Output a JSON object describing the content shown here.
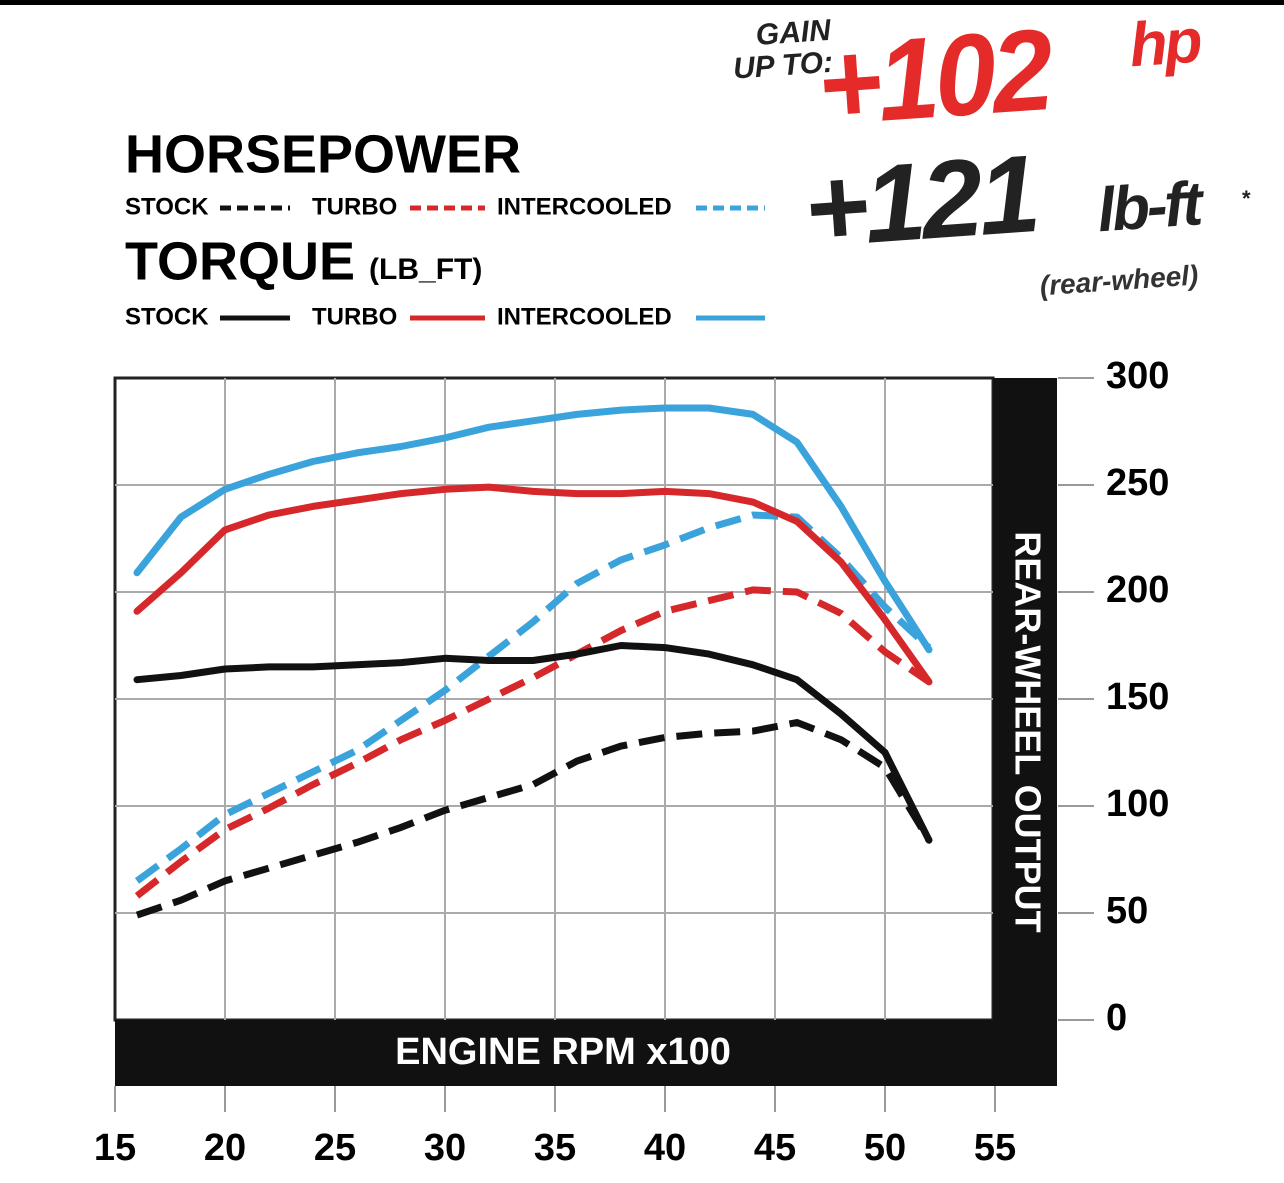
{
  "chart_data": {
    "type": "line",
    "headline": {
      "intro": "GAIN\nUP TO:",
      "hp_value": "+102",
      "hp_unit": "hp",
      "tq_value": "+121",
      "tq_unit": "lb-ft",
      "tq_mark": "*",
      "note": "(rear-wheel)"
    },
    "legend_groups": [
      {
        "title": "HORSEPOWER"
      },
      {
        "title": "TORQUE",
        "unit": "(LB_FT)"
      }
    ],
    "xlabel": "ENGINE RPM x100",
    "ylabel": "REAR-WHEEL OUTPUT",
    "x": [
      16,
      18,
      20,
      22,
      24,
      26,
      28,
      30,
      32,
      34,
      36,
      38,
      40,
      42,
      44,
      46,
      48,
      50,
      52
    ],
    "series": [
      {
        "name": "STOCK",
        "group": 0,
        "dashed": true,
        "color": "#111111",
        "values": [
          49,
          56,
          65,
          71,
          77,
          83,
          90,
          98,
          104,
          110,
          121,
          128,
          132,
          134,
          135,
          139,
          131,
          118,
          84
        ]
      },
      {
        "name": "TURBO",
        "group": 0,
        "dashed": true,
        "color": "#d6282b",
        "values": [
          58,
          74,
          89,
          99,
          110,
          120,
          131,
          140,
          150,
          160,
          171,
          182,
          191,
          196,
          201,
          200,
          190,
          172,
          158
        ]
      },
      {
        "name": "INTERCOOLED",
        "group": 0,
        "dashed": true,
        "color": "#3aa3dc",
        "values": [
          65,
          80,
          96,
          106,
          116,
          126,
          140,
          154,
          170,
          186,
          204,
          215,
          222,
          230,
          236,
          235,
          216,
          193,
          174
        ]
      },
      {
        "name": "STOCK",
        "group": 1,
        "dashed": false,
        "color": "#111111",
        "values": [
          159,
          161,
          164,
          165,
          165,
          166,
          167,
          169,
          168,
          168,
          171,
          175,
          174,
          171,
          166,
          159,
          143,
          125,
          84
        ]
      },
      {
        "name": "TURBO",
        "group": 1,
        "dashed": false,
        "color": "#d6282b",
        "values": [
          191,
          209,
          229,
          236,
          240,
          243,
          246,
          248,
          249,
          247,
          246,
          246,
          247,
          246,
          242,
          233,
          214,
          187,
          158
        ]
      },
      {
        "name": "INTERCOOLED",
        "group": 1,
        "dashed": false,
        "color": "#3aa3dc",
        "values": [
          209,
          235,
          248,
          255,
          261,
          265,
          268,
          272,
          277,
          280,
          283,
          285,
          286,
          286,
          283,
          270,
          240,
          205,
          173
        ]
      }
    ],
    "xlim": [
      15,
      55
    ],
    "xticks": [
      15,
      20,
      25,
      30,
      35,
      40,
      45,
      50,
      55
    ],
    "ylim": [
      0,
      300
    ],
    "yticks": [
      0,
      50,
      100,
      150,
      200,
      250,
      300
    ],
    "grid": true
  }
}
